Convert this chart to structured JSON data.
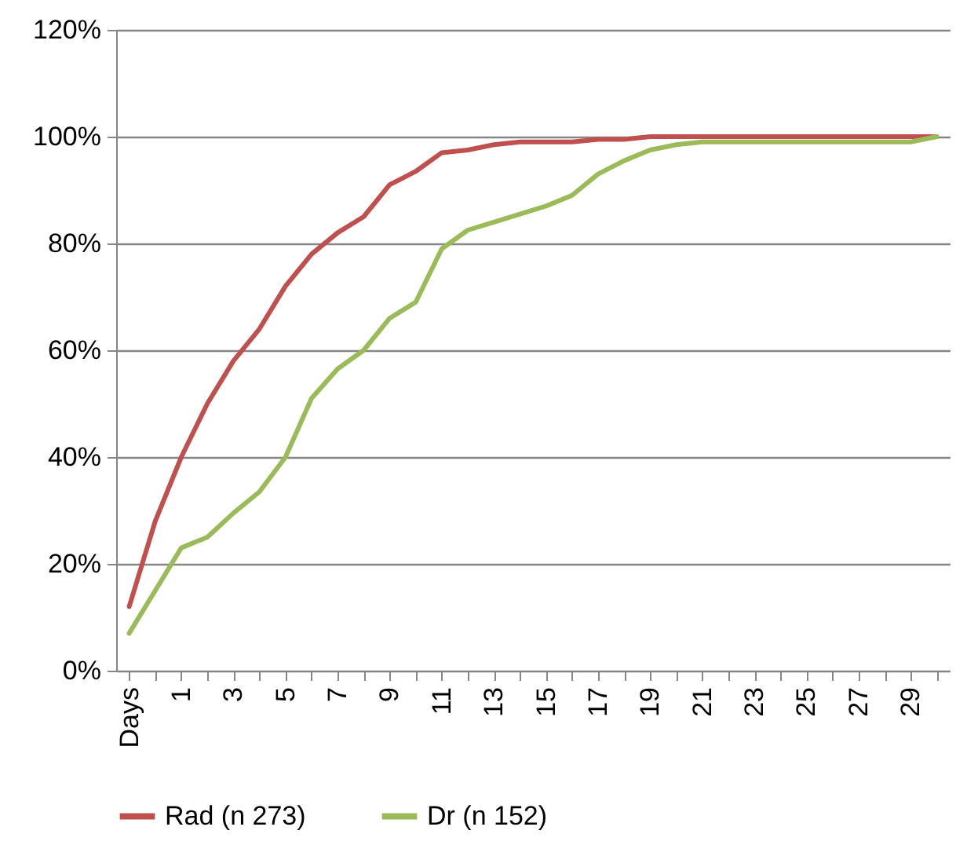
{
  "chart_data": {
    "type": "line",
    "categories": [
      "Days",
      null,
      "1",
      null,
      "3",
      null,
      "5",
      null,
      "7",
      null,
      "9",
      null,
      "11",
      null,
      "13",
      null,
      "15",
      null,
      "17",
      null,
      "19",
      null,
      "21",
      null,
      "23",
      null,
      "25",
      null,
      "27",
      null,
      "29",
      null
    ],
    "series": [
      {
        "name": "Rad (n 273)",
        "color": "#c0504d",
        "values": [
          12,
          28,
          40,
          50,
          58,
          64,
          72,
          78,
          82,
          85,
          91,
          93.5,
          97,
          97.5,
          98.5,
          99,
          99,
          99,
          99.5,
          99.5,
          100,
          100,
          100,
          100,
          100,
          100,
          100,
          100,
          100,
          100,
          100,
          100
        ]
      },
      {
        "name": "Dr (n 152)",
        "color": "#9bbb59",
        "values": [
          7,
          15,
          23,
          25,
          29.5,
          33.5,
          40,
          51,
          56.5,
          60,
          66,
          69,
          79,
          82.5,
          84,
          85.5,
          87,
          89,
          93,
          95.5,
          97.5,
          98.5,
          99,
          99,
          99,
          99,
          99,
          99,
          99,
          99,
          99,
          100
        ]
      }
    ],
    "ylim": [
      0,
      120
    ],
    "yticks": [
      {
        "value": 0,
        "label": "0%"
      },
      {
        "value": 20,
        "label": "20%"
      },
      {
        "value": 40,
        "label": "40%"
      },
      {
        "value": 60,
        "label": "60%"
      },
      {
        "value": 80,
        "label": "80%"
      },
      {
        "value": 100,
        "label": "100%"
      },
      {
        "value": 120,
        "label": "120%"
      }
    ],
    "grid": "y",
    "legend": "bottom",
    "marker": "none",
    "line_style": "solid"
  }
}
